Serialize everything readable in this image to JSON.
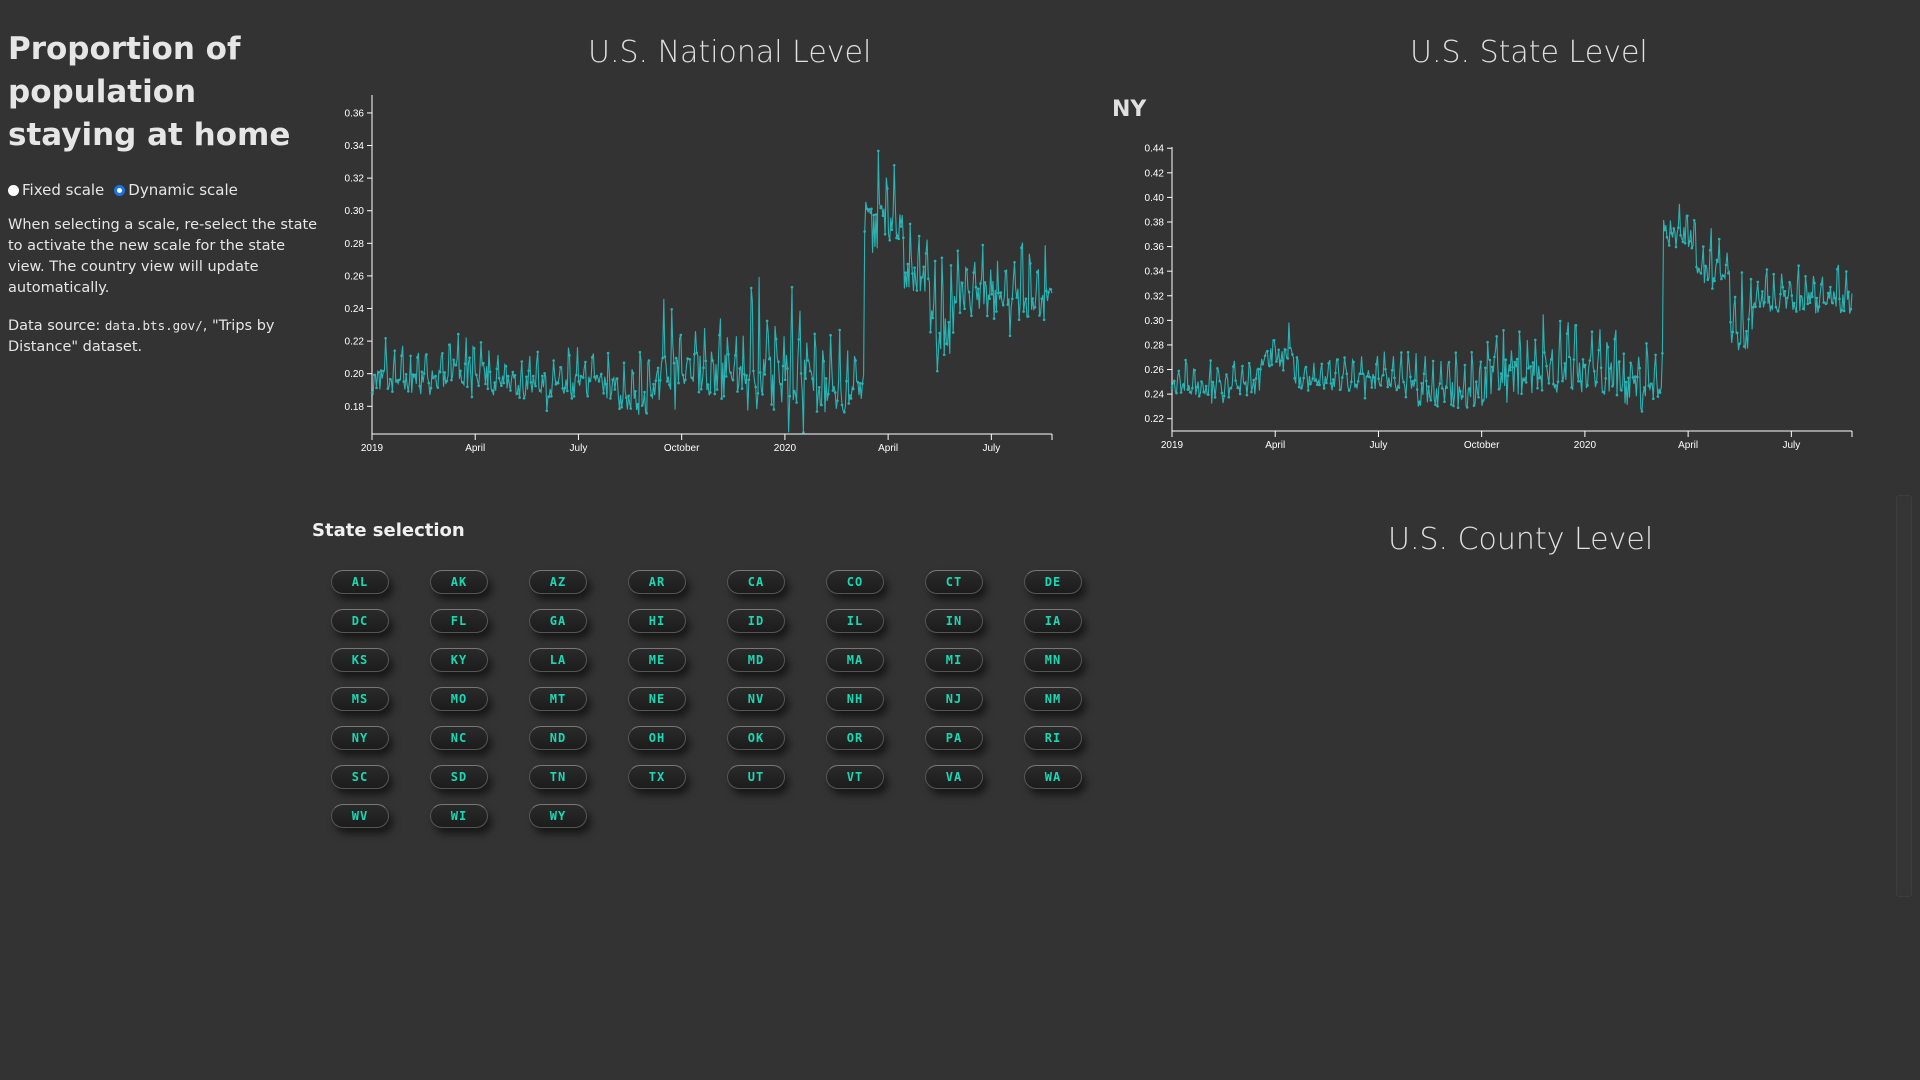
{
  "sidebar": {
    "title": "Proportion of population staying at home",
    "fixed_label": "Fixed scale",
    "dynamic_label": "Dynamic scale",
    "selected_scale": "dynamic",
    "note": "When selecting a scale, re-select the state to activate the new scale for the state view. The country view will update automatically.",
    "source_prefix": "Data source: ",
    "source_code": "data.bts.gov/",
    "source_suffix": ", \"Trips by Distance\" dataset."
  },
  "national": {
    "title": "U.S. National Level"
  },
  "state": {
    "title": "U.S. State Level",
    "selected": "NY"
  },
  "county": {
    "title": "U.S. County Level"
  },
  "selection": {
    "heading": "State selection",
    "states": [
      "AL",
      "AK",
      "AZ",
      "AR",
      "CA",
      "CO",
      "CT",
      "DE",
      "DC",
      "FL",
      "GA",
      "HI",
      "ID",
      "IL",
      "IN",
      "IA",
      "KS",
      "KY",
      "LA",
      "ME",
      "MD",
      "MA",
      "MI",
      "MN",
      "MS",
      "MO",
      "MT",
      "NE",
      "NV",
      "NH",
      "NJ",
      "NM",
      "NY",
      "NC",
      "ND",
      "OH",
      "OK",
      "OR",
      "PA",
      "RI",
      "SC",
      "SD",
      "TN",
      "TX",
      "UT",
      "VT",
      "VA",
      "WA",
      "WV",
      "WI",
      "WY"
    ]
  },
  "colors": {
    "line": "#2ab3b3",
    "accent": "#19d9b4",
    "background": "#333333"
  },
  "chart_data": [
    {
      "type": "line",
      "name": "national",
      "x_ticks": [
        "2019",
        "April",
        "July",
        "October",
        "2020",
        "April",
        "July"
      ],
      "y_ticks": [
        "0.18",
        "0.20",
        "0.22",
        "0.24",
        "0.26",
        "0.28",
        "0.30",
        "0.32",
        "0.34",
        "0.36"
      ],
      "ylim": [
        0.163,
        0.371
      ],
      "segments": [
        {
          "start": 0.0,
          "end": 0.12,
          "base": 0.195,
          "noise": 0.01
        },
        {
          "start": 0.12,
          "end": 0.17,
          "base": 0.201,
          "noise": 0.012
        },
        {
          "start": 0.17,
          "end": 0.36,
          "base": 0.192,
          "noise": 0.009
        },
        {
          "start": 0.36,
          "end": 0.42,
          "base": 0.185,
          "noise": 0.013
        },
        {
          "start": 0.42,
          "end": 0.54,
          "base": 0.198,
          "noise": 0.018
        },
        {
          "start": 0.54,
          "end": 0.65,
          "base": 0.195,
          "noise": 0.022
        },
        {
          "start": 0.65,
          "end": 0.724,
          "base": 0.187,
          "noise": 0.015
        },
        {
          "start": 0.724,
          "end": 0.78,
          "base": 0.29,
          "noise": 0.02
        },
        {
          "start": 0.78,
          "end": 0.82,
          "base": 0.26,
          "noise": 0.012
        },
        {
          "start": 0.82,
          "end": 0.85,
          "base": 0.225,
          "noise": 0.018
        },
        {
          "start": 0.85,
          "end": 1.0,
          "base": 0.245,
          "noise": 0.015
        }
      ]
    },
    {
      "type": "line",
      "name": "state",
      "x_ticks": [
        "2019",
        "April",
        "July",
        "October",
        "2020",
        "April",
        "July"
      ],
      "y_ticks": [
        "0.22",
        "0.24",
        "0.26",
        "0.28",
        "0.30",
        "0.32",
        "0.34",
        "0.36",
        "0.38",
        "0.40",
        "0.42",
        "0.44"
      ],
      "ylim": [
        0.21,
        0.441
      ],
      "segments": [
        {
          "start": 0.0,
          "end": 0.13,
          "base": 0.245,
          "noise": 0.01
        },
        {
          "start": 0.13,
          "end": 0.18,
          "base": 0.268,
          "noise": 0.012
        },
        {
          "start": 0.18,
          "end": 0.36,
          "base": 0.25,
          "noise": 0.009
        },
        {
          "start": 0.36,
          "end": 0.46,
          "base": 0.24,
          "noise": 0.014
        },
        {
          "start": 0.46,
          "end": 0.66,
          "base": 0.255,
          "noise": 0.02
        },
        {
          "start": 0.66,
          "end": 0.722,
          "base": 0.24,
          "noise": 0.018
        },
        {
          "start": 0.722,
          "end": 0.77,
          "base": 0.368,
          "noise": 0.012
        },
        {
          "start": 0.77,
          "end": 0.82,
          "base": 0.34,
          "noise": 0.013
        },
        {
          "start": 0.82,
          "end": 0.85,
          "base": 0.29,
          "noise": 0.018
        },
        {
          "start": 0.85,
          "end": 1.0,
          "base": 0.315,
          "noise": 0.012
        }
      ]
    }
  ]
}
